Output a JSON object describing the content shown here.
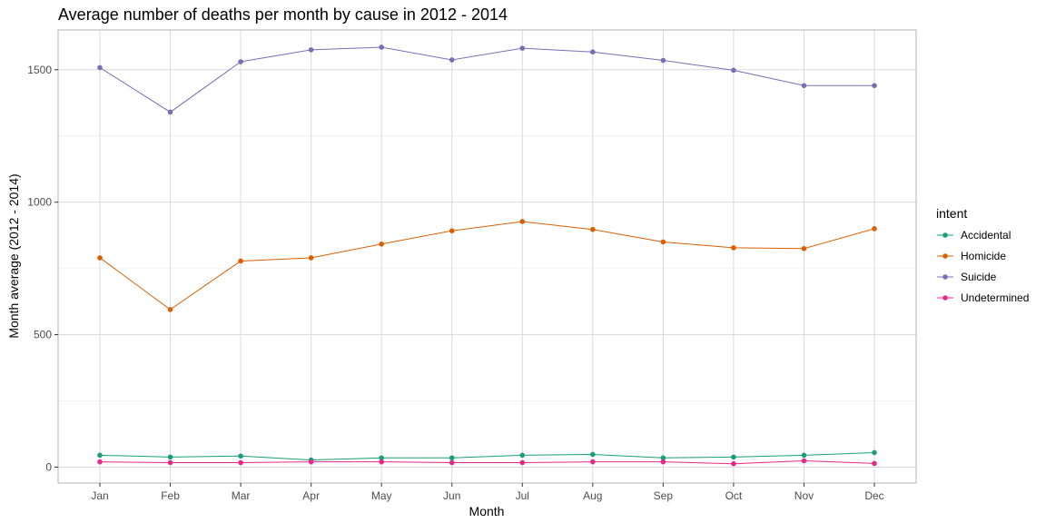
{
  "chart_data": {
    "type": "line",
    "title": "Average number of deaths per month by cause in 2012 - 2014",
    "xlabel": "Month",
    "ylabel": "Month average (2012 - 2014)",
    "categories": [
      "Jan",
      "Feb",
      "Mar",
      "Apr",
      "May",
      "Jun",
      "Jul",
      "Aug",
      "Sep",
      "Oct",
      "Nov",
      "Dec"
    ],
    "ylim": [
      -60,
      1650
    ],
    "yticks": [
      0,
      500,
      1000,
      1500
    ],
    "ytick_labels": [
      "0",
      "500",
      "1000",
      "1500"
    ],
    "grid": true,
    "legend": {
      "title": "intent",
      "placement": "right"
    },
    "series": [
      {
        "name": "Accidental",
        "color": "#1b9e77",
        "values": [
          45,
          38,
          42,
          27,
          35,
          35,
          45,
          48,
          35,
          38,
          45,
          55
        ]
      },
      {
        "name": "Homicide",
        "color": "#d95f02",
        "values": [
          790,
          595,
          778,
          790,
          842,
          892,
          927,
          897,
          850,
          828,
          825,
          900
        ]
      },
      {
        "name": "Suicide",
        "color": "#7570b3",
        "values": [
          1508,
          1340,
          1530,
          1575,
          1585,
          1537,
          1581,
          1567,
          1535,
          1498,
          1440,
          1440
        ]
      },
      {
        "name": "Undetermined",
        "color": "#e7298a",
        "values": [
          20,
          17,
          17,
          20,
          20,
          17,
          17,
          20,
          20,
          13,
          24,
          14
        ]
      }
    ]
  }
}
